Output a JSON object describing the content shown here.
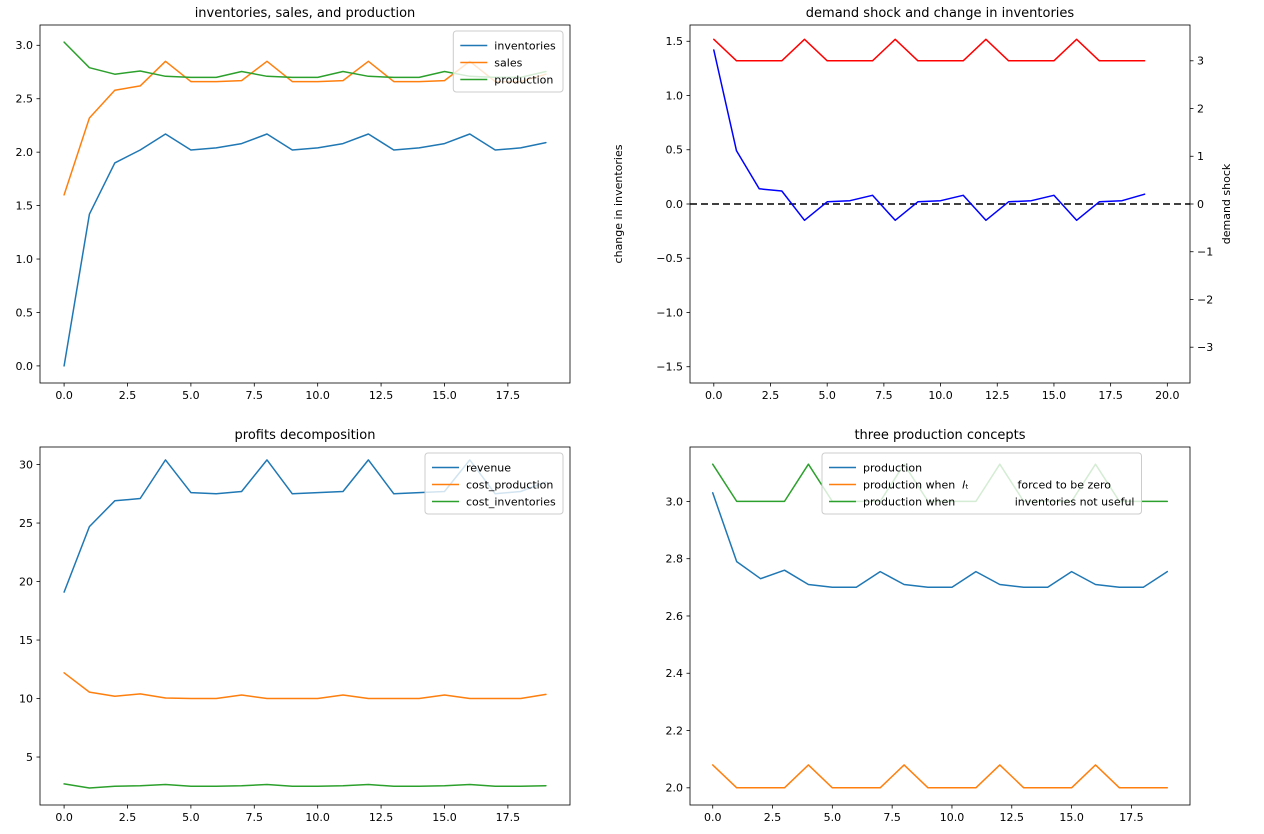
{
  "figure": {
    "background": "#ffffff"
  },
  "chart_data": [
    {
      "type": "line",
      "title": "inventories, sales, and production",
      "x": [
        0,
        1,
        2,
        3,
        4,
        5,
        6,
        7,
        8,
        9,
        10,
        11,
        12,
        13,
        14,
        15,
        16,
        17,
        18,
        19
      ],
      "xlim": [
        -0.95,
        19.95
      ],
      "ylim": [
        -0.16,
        3.19
      ],
      "xticks": {
        "values": [
          0,
          2.5,
          5,
          7.5,
          10,
          12.5,
          15,
          17.5
        ],
        "labels": [
          "0.0",
          "2.5",
          "5.0",
          "7.5",
          "10.0",
          "12.5",
          "15.0",
          "17.5"
        ]
      },
      "yticks": {
        "values": [
          0,
          0.5,
          1,
          1.5,
          2,
          2.5,
          3
        ],
        "labels": [
          "0.0",
          "0.5",
          "1.0",
          "1.5",
          "2.0",
          "2.5",
          "3.0"
        ]
      },
      "series": [
        {
          "key": "inventories",
          "name": "inventories",
          "color": "#1f77b4",
          "values": [
            0.0,
            1.42,
            1.9,
            2.02,
            2.17,
            2.02,
            2.04,
            2.08,
            2.17,
            2.02,
            2.04,
            2.08,
            2.17,
            2.02,
            2.04,
            2.08,
            2.17,
            2.02,
            2.04,
            2.09
          ]
        },
        {
          "key": "sales",
          "name": "sales",
          "color": "#ff7f0e",
          "values": [
            1.6,
            2.32,
            2.58,
            2.62,
            2.85,
            2.66,
            2.66,
            2.67,
            2.85,
            2.66,
            2.66,
            2.67,
            2.85,
            2.66,
            2.66,
            2.67,
            2.85,
            2.66,
            2.66,
            2.73
          ]
        },
        {
          "key": "production",
          "name": "production",
          "color": "#2ca02c",
          "values": [
            3.03,
            2.79,
            2.73,
            2.76,
            2.71,
            2.7,
            2.7,
            2.755,
            2.71,
            2.7,
            2.7,
            2.755,
            2.71,
            2.7,
            2.7,
            2.755,
            2.71,
            2.7,
            2.7,
            2.755
          ]
        }
      ],
      "legend": {
        "show": true,
        "loc": "upper right"
      }
    },
    {
      "type": "line",
      "title": "demand shock and change in inventories",
      "x": [
        0,
        1,
        2,
        3,
        4,
        5,
        6,
        7,
        8,
        9,
        10,
        11,
        12,
        13,
        14,
        15,
        16,
        17,
        18,
        19
      ],
      "xlim": [
        -1.05,
        21.0
      ],
      "ylim": [
        -1.65,
        1.65
      ],
      "ylim_right": [
        -3.75,
        3.75
      ],
      "xticks": {
        "values": [
          0,
          2.5,
          5,
          7.5,
          10,
          12.5,
          15,
          17.5,
          20
        ],
        "labels": [
          "0.0",
          "2.5",
          "5.0",
          "7.5",
          "10.0",
          "12.5",
          "15.0",
          "17.5",
          "20.0"
        ]
      },
      "yticks": {
        "values": [
          -1.5,
          -1,
          -0.5,
          0,
          0.5,
          1,
          1.5
        ],
        "labels": [
          "−1.5",
          "−1.0",
          "−0.5",
          "0.0",
          "0.5",
          "1.0",
          "1.5"
        ]
      },
      "yticks_right": {
        "values": [
          3,
          2,
          1,
          0,
          -1,
          -2,
          -3
        ],
        "labels": [
          "3",
          "2",
          "1",
          "0",
          "−1",
          "−2",
          "−3"
        ]
      },
      "ylabel_left": {
        "text": "change in inventories",
        "color": "#0000ff"
      },
      "ylabel_right": {
        "text": "demand shock",
        "color": "#ff0000"
      },
      "hlines": [
        {
          "y": 0,
          "color": "#000000",
          "style": "dashed"
        }
      ],
      "series": [
        {
          "key": "change_in_inventories",
          "name": "change in inventories",
          "color": "#0000ff",
          "axis": "left",
          "values": [
            1.42,
            0.49,
            0.14,
            0.12,
            -0.15,
            0.02,
            0.03,
            0.08,
            -0.15,
            0.02,
            0.03,
            0.08,
            -0.15,
            0.02,
            0.03,
            0.08,
            -0.15,
            0.02,
            0.03,
            0.09
          ]
        },
        {
          "key": "demand_shock",
          "name": "demand shock",
          "color": "#ff0000",
          "axis": "right",
          "values": [
            3.45,
            3,
            3,
            3,
            3.45,
            3,
            3,
            3,
            3.45,
            3,
            3,
            3,
            3.45,
            3,
            3,
            3,
            3.45,
            3,
            3,
            3
          ]
        }
      ],
      "legend": {
        "show": false
      }
    },
    {
      "type": "line",
      "title": "profits decomposition",
      "x": [
        0,
        1,
        2,
        3,
        4,
        5,
        6,
        7,
        8,
        9,
        10,
        11,
        12,
        13,
        14,
        15,
        16,
        17,
        18,
        19
      ],
      "xlim": [
        -0.95,
        19.95
      ],
      "ylim": [
        0.9,
        31.5
      ],
      "xticks": {
        "values": [
          0,
          2.5,
          5,
          7.5,
          10,
          12.5,
          15,
          17.5
        ],
        "labels": [
          "0.0",
          "2.5",
          "5.0",
          "7.5",
          "10.0",
          "12.5",
          "15.0",
          "17.5"
        ]
      },
      "yticks": {
        "values": [
          5,
          10,
          15,
          20,
          25,
          30
        ],
        "labels": [
          "5",
          "10",
          "15",
          "20",
          "25",
          "30"
        ]
      },
      "series": [
        {
          "key": "revenue",
          "name": "revenue",
          "color": "#1f77b4",
          "values": [
            19.1,
            24.7,
            26.9,
            27.1,
            30.4,
            27.6,
            27.5,
            27.7,
            30.4,
            27.5,
            27.6,
            27.7,
            30.4,
            27.5,
            27.6,
            27.7,
            30.4,
            27.5,
            27.7,
            28.5
          ]
        },
        {
          "key": "cost_production",
          "name": "cost_production",
          "color": "#ff7f0e",
          "values": [
            12.2,
            10.55,
            10.2,
            10.4,
            10.05,
            10.0,
            10.0,
            10.3,
            10.0,
            10.0,
            10.0,
            10.3,
            10.0,
            10.0,
            10.0,
            10.3,
            10.0,
            10.0,
            10.0,
            10.35
          ]
        },
        {
          "key": "cost_inventories",
          "name": "cost_inventories",
          "color": "#2ca02c",
          "values": [
            2.7,
            2.35,
            2.5,
            2.55,
            2.65,
            2.5,
            2.5,
            2.55,
            2.65,
            2.5,
            2.5,
            2.55,
            2.65,
            2.5,
            2.5,
            2.55,
            2.65,
            2.5,
            2.5,
            2.55
          ]
        }
      ],
      "legend": {
        "show": true,
        "loc": "upper right"
      }
    },
    {
      "type": "line",
      "title": "three production concepts",
      "x": [
        0,
        1,
        2,
        3,
        4,
        5,
        6,
        7,
        8,
        9,
        10,
        11,
        12,
        13,
        14,
        15,
        16,
        17,
        18,
        19
      ],
      "xlim": [
        -0.95,
        19.95
      ],
      "ylim": [
        1.94,
        3.19
      ],
      "xticks": {
        "values": [
          0,
          2.5,
          5,
          7.5,
          10,
          12.5,
          15,
          17.5
        ],
        "labels": [
          "0.0",
          "2.5",
          "5.0",
          "7.5",
          "10.0",
          "12.5",
          "15.0",
          "17.5"
        ]
      },
      "yticks": {
        "values": [
          2.0,
          2.2,
          2.4,
          2.6,
          2.8,
          3.0
        ],
        "labels": [
          "2.0",
          "2.2",
          "2.4",
          "2.6",
          "2.8",
          "3.0"
        ]
      },
      "series": [
        {
          "key": "production",
          "name": "production",
          "color": "#1f77b4",
          "values": [
            3.03,
            2.79,
            2.73,
            2.76,
            2.71,
            2.7,
            2.7,
            2.755,
            2.71,
            2.7,
            2.7,
            2.755,
            2.71,
            2.7,
            2.7,
            2.755,
            2.71,
            2.7,
            2.7,
            2.755
          ]
        },
        {
          "key": "production_zero_inventories",
          "name": "production when  𝐼ₜ              forced to be zero",
          "color": "#ff7f0e",
          "values": [
            2.08,
            2.0,
            2.0,
            2.0,
            2.08,
            2.0,
            2.0,
            2.0,
            2.08,
            2.0,
            2.0,
            2.0,
            2.08,
            2.0,
            2.0,
            2.0,
            2.08,
            2.0,
            2.0,
            2.0
          ]
        },
        {
          "key": "production_inventories_not_useful",
          "name": "production when                 inventories not useful",
          "color": "#2ca02c",
          "values": [
            3.13,
            3.0,
            3.0,
            3.0,
            3.13,
            3.0,
            3.0,
            3.0,
            3.13,
            3.0,
            3.0,
            3.0,
            3.13,
            3.0,
            3.0,
            3.0,
            3.13,
            3.0,
            3.0,
            3.0
          ]
        }
      ],
      "legend": {
        "show": true,
        "loc": "offset",
        "offset": 132
      }
    }
  ]
}
